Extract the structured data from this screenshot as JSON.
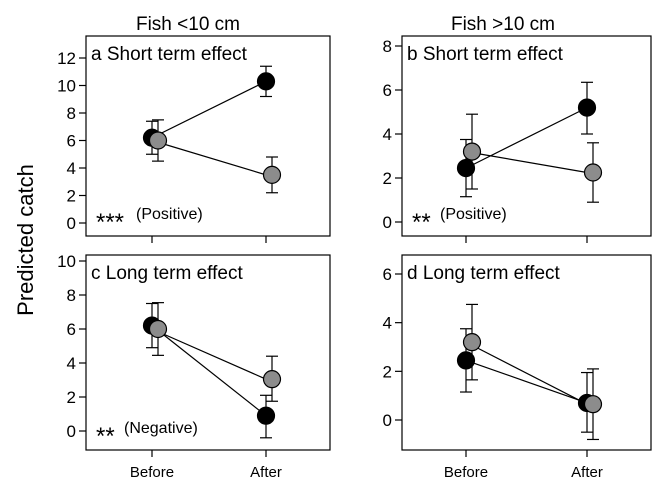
{
  "figure": {
    "col_titles": [
      "Fish <10 cm",
      "Fish >10 cm"
    ],
    "ylabel": "Predicted catch"
  },
  "chart_data": [
    {
      "type": "line",
      "panel_letter": "a",
      "panel_title": "Short term effect",
      "significance": "***",
      "effect_label": "(Positive)",
      "categories": [
        "Before",
        "After"
      ],
      "ylim": [
        0,
        12
      ],
      "yticks": [
        0,
        2,
        4,
        6,
        8,
        10,
        12
      ],
      "series": [
        {
          "color": "#000000",
          "values": [
            6.2,
            10.3
          ],
          "lower": [
            5.0,
            9.2
          ],
          "upper": [
            7.4,
            11.4
          ]
        },
        {
          "color": "#8c8c8c",
          "values": [
            6.0,
            3.5
          ],
          "lower": [
            4.5,
            2.2
          ],
          "upper": [
            7.5,
            4.8
          ]
        }
      ]
    },
    {
      "type": "line",
      "panel_letter": "b",
      "panel_title": "Short term effect",
      "significance": "**",
      "effect_label": "(Positive)",
      "categories": [
        "Before",
        "After"
      ],
      "ylim": [
        0,
        8
      ],
      "yticks": [
        0,
        2,
        4,
        6,
        8
      ],
      "series": [
        {
          "color": "#000000",
          "values": [
            2.45,
            5.2
          ],
          "lower": [
            1.15,
            4.0
          ],
          "upper": [
            3.75,
            6.35
          ]
        },
        {
          "color": "#8c8c8c",
          "values": [
            3.2,
            2.25
          ],
          "lower": [
            1.5,
            0.9
          ],
          "upper": [
            4.9,
            3.6
          ]
        }
      ]
    },
    {
      "type": "line",
      "panel_letter": "c",
      "panel_title": "Long term effect",
      "significance": "**",
      "effect_label": "(Negative)",
      "categories": [
        "Before",
        "After"
      ],
      "ylim": [
        0,
        10
      ],
      "yticks": [
        0,
        2,
        4,
        6,
        8,
        10
      ],
      "series": [
        {
          "color": "#000000",
          "values": [
            6.2,
            0.9
          ],
          "lower": [
            4.9,
            -0.4
          ],
          "upper": [
            7.5,
            2.1
          ]
        },
        {
          "color": "#8c8c8c",
          "values": [
            6.0,
            3.05
          ],
          "lower": [
            4.45,
            1.75
          ],
          "upper": [
            7.55,
            4.4
          ]
        }
      ]
    },
    {
      "type": "line",
      "panel_letter": "d",
      "panel_title": "Long term effect",
      "significance": "",
      "effect_label": "",
      "categories": [
        "Before",
        "After"
      ],
      "ylim": [
        0,
        6
      ],
      "yticks": [
        0,
        2,
        4,
        6
      ],
      "series": [
        {
          "color": "#000000",
          "values": [
            2.45,
            0.7
          ],
          "lower": [
            1.15,
            -0.5
          ],
          "upper": [
            3.75,
            1.95
          ]
        },
        {
          "color": "#8c8c8c",
          "values": [
            3.2,
            0.65
          ],
          "lower": [
            1.65,
            -0.8
          ],
          "upper": [
            4.75,
            2.1
          ]
        }
      ]
    }
  ]
}
